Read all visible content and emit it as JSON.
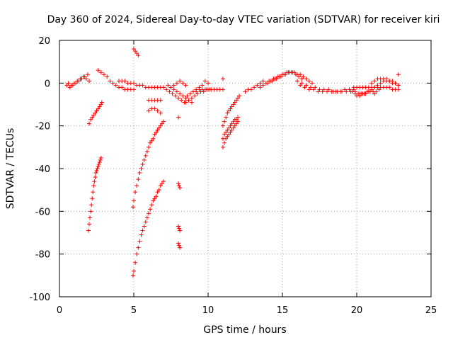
{
  "chart_data": {
    "type": "scatter",
    "title": "Day 360 of 2024, Sidereal Day-to-day VTEC variation (SDTVAR) for receiver kiri",
    "xlabel": "GPS time / hours",
    "ylabel": "SDTVAR / TECUs",
    "xlim": [
      0,
      25
    ],
    "ylim": [
      -100,
      20
    ],
    "xticks": [
      "0",
      "5",
      "10",
      "15",
      "20",
      "25"
    ],
    "yticks": [
      "20",
      "0",
      "-20",
      "-40",
      "-60",
      "-80",
      "-100"
    ],
    "grid": true,
    "marker": "+",
    "color": "#ff0000",
    "series": [
      {
        "name": "s1",
        "x": [
          0.5,
          0.7,
          0.9,
          1.1,
          1.3,
          1.5,
          1.7,
          1.9
        ],
        "y": [
          -1,
          -2,
          -1,
          0,
          1,
          2,
          3,
          4
        ]
      },
      {
        "name": "s2",
        "x": [
          0.6,
          0.8,
          1.0,
          1.2,
          1.4,
          1.6,
          1.8,
          2.0
        ],
        "y": [
          0,
          -1,
          0,
          1,
          2,
          3,
          2,
          1
        ]
      },
      {
        "name": "s3",
        "x": [
          2.0,
          2.1,
          2.2,
          2.3,
          2.4,
          2.5,
          2.6,
          2.7,
          2.8,
          2.85
        ],
        "y": [
          -19,
          -17,
          -16,
          -15,
          -14,
          -13,
          -12,
          -11,
          -10,
          -9
        ]
      },
      {
        "name": "s4",
        "x": [
          1.95,
          2.0,
          2.05,
          2.1,
          2.15,
          2.2,
          2.25,
          2.3,
          2.35,
          2.4,
          2.45,
          2.5,
          2.55,
          2.6,
          2.65,
          2.7,
          2.75,
          2.8
        ],
        "y": [
          -69,
          -66,
          -63,
          -60,
          -57,
          -54,
          -51,
          -48,
          -46,
          -44,
          -42,
          -41,
          -40,
          -39,
          -38,
          -37,
          -36,
          -35
        ]
      },
      {
        "name": "s5",
        "x": [
          2.6,
          2.8,
          3.0,
          3.2,
          3.4,
          3.6,
          3.8,
          4.0,
          4.2,
          4.4,
          4.6,
          4.8,
          5.0
        ],
        "y": [
          6,
          5,
          4,
          3,
          1,
          0,
          -1,
          -2,
          -2,
          -3,
          -3,
          -3,
          -3
        ]
      },
      {
        "name": "s6",
        "x": [
          4.0,
          4.2,
          4.4,
          4.6,
          4.8,
          5.0,
          5.2,
          5.4,
          5.6,
          5.8,
          6.0,
          6.2,
          6.4,
          6.6,
          6.8,
          7.0
        ],
        "y": [
          1,
          1,
          1,
          0,
          0,
          0,
          -1,
          -1,
          -1,
          -2,
          -2,
          -2,
          -2,
          -2,
          -2,
          -2
        ]
      },
      {
        "name": "s7",
        "x": [
          5.0,
          5.1,
          5.2,
          5.3
        ],
        "y": [
          16,
          15,
          14,
          13
        ]
      },
      {
        "name": "s8",
        "x": [
          4.95,
          5.0,
          5.1,
          5.2,
          5.3,
          5.4,
          5.5,
          5.6,
          5.7,
          5.8,
          5.9,
          6.0,
          6.1,
          6.2,
          6.3,
          6.4,
          6.5,
          6.6,
          6.7,
          6.8,
          6.9,
          7.0
        ],
        "y": [
          -58,
          -55,
          -51,
          -48,
          -45,
          -42,
          -40,
          -38,
          -36,
          -34,
          -32,
          -30,
          -28,
          -27,
          -26,
          -24,
          -23,
          -22,
          -21,
          -20,
          -19,
          -18
        ]
      },
      {
        "name": "s9",
        "x": [
          4.95,
          5.0,
          5.1,
          5.2,
          5.3,
          5.4,
          5.5,
          5.6,
          5.7,
          5.8,
          5.9,
          6.0,
          6.1,
          6.2,
          6.3,
          6.4,
          6.5,
          6.6,
          6.7,
          6.8,
          6.9,
          7.0
        ],
        "y": [
          -90,
          -88,
          -84,
          -80,
          -77,
          -74,
          -71,
          -69,
          -67,
          -65,
          -63,
          -61,
          -59,
          -57,
          -55,
          -54,
          -53,
          -51,
          -50,
          -48,
          -47,
          -46
        ]
      },
      {
        "name": "s10",
        "x": [
          6.0,
          6.2,
          6.4,
          6.6,
          6.8
        ],
        "y": [
          -8,
          -8,
          -8,
          -8,
          -8
        ]
      },
      {
        "name": "s11",
        "x": [
          6.0,
          6.2,
          6.4,
          6.6,
          6.8
        ],
        "y": [
          -13,
          -12,
          -12,
          -13,
          -14
        ]
      },
      {
        "name": "s12",
        "x": [
          7.0,
          7.2,
          7.4,
          7.6,
          7.8,
          8.0,
          8.2,
          8.4
        ],
        "y": [
          -2,
          -3,
          -4,
          -5,
          -6,
          -7,
          -8,
          -9
        ]
      },
      {
        "name": "s13",
        "x": [
          7.3,
          7.5,
          7.7,
          7.9,
          8.1,
          8.3,
          8.5,
          8.7,
          8.9
        ],
        "y": [
          -1,
          -2,
          -3,
          -4,
          -5,
          -6,
          -7,
          -8,
          -9
        ]
      },
      {
        "name": "s14",
        "x": [
          8.5,
          8.7,
          8.9,
          9.1,
          9.3,
          9.5,
          9.7,
          9.9,
          10.1
        ],
        "y": [
          -9,
          -8,
          -7,
          -6,
          -5,
          -4,
          -4,
          -3,
          -3
        ]
      },
      {
        "name": "s15",
        "x": [
          7.5,
          7.7,
          7.9,
          8.1,
          8.3,
          8.5
        ],
        "y": [
          -2,
          -1,
          0,
          1,
          0,
          -1
        ]
      },
      {
        "name": "s16",
        "x": [
          8.6,
          8.8,
          9.0,
          9.2,
          9.4,
          9.6
        ],
        "y": [
          -6,
          -5,
          -4,
          -3,
          -2,
          -1
        ]
      },
      {
        "name": "s17",
        "x": [
          9.0,
          9.2,
          9.4,
          9.6,
          9.8,
          10.0,
          10.2,
          10.4,
          10.6,
          10.8,
          11.0
        ],
        "y": [
          -4,
          -4,
          -3,
          -3,
          -3,
          -3,
          -3,
          -3,
          -3,
          -3,
          -3
        ]
      },
      {
        "name": "s18",
        "x": [
          9.8,
          10.0
        ],
        "y": [
          1,
          0
        ]
      },
      {
        "name": "s19",
        "x": [
          11.0
        ],
        "y": [
          2
        ]
      },
      {
        "name": "s20",
        "x": [
          8.0,
          8.05,
          8.1
        ],
        "y": [
          -47,
          -48,
          -49
        ]
      },
      {
        "name": "s21",
        "x": [
          8.0,
          8.05,
          8.1
        ],
        "y": [
          -67,
          -68,
          -69
        ]
      },
      {
        "name": "s22",
        "x": [
          8.0,
          8.05,
          8.1
        ],
        "y": [
          -75,
          -76,
          -77
        ]
      },
      {
        "name": "s23",
        "x": [
          8.0
        ],
        "y": [
          -16
        ]
      },
      {
        "name": "s24",
        "x": [
          11.0,
          11.1,
          11.2,
          11.3,
          11.4,
          11.5,
          11.6,
          11.7,
          11.8,
          11.9,
          12.0,
          12.1
        ],
        "y": [
          -20,
          -18,
          -16,
          -14,
          -13,
          -12,
          -11,
          -10,
          -9,
          -8,
          -7,
          -6
        ]
      },
      {
        "name": "s25",
        "x": [
          11.0,
          11.1,
          11.2,
          11.3,
          11.4,
          11.5,
          11.6,
          11.7,
          11.8,
          11.9,
          12.0
        ],
        "y": [
          -30,
          -28,
          -26,
          -25,
          -24,
          -23,
          -22,
          -21,
          -20,
          -19,
          -18
        ]
      },
      {
        "name": "s26",
        "x": [
          11.0,
          11.1,
          11.2,
          11.3,
          11.4,
          11.5,
          11.6,
          11.7,
          11.8,
          11.9,
          12.0
        ],
        "y": [
          -26,
          -24,
          -23,
          -22,
          -21,
          -20,
          -19,
          -18,
          -17,
          -17,
          -16
        ]
      },
      {
        "name": "s27",
        "x": [
          12.5,
          12.7,
          12.9,
          13.1,
          13.3,
          13.5,
          13.7
        ],
        "y": [
          -4,
          -3,
          -3,
          -2,
          -1,
          0,
          1
        ]
      },
      {
        "name": "s28",
        "x": [
          13.5,
          13.7,
          13.9,
          14.1,
          14.3,
          14.5,
          14.7,
          14.9,
          15.1,
          15.3,
          15.5,
          15.7,
          15.9,
          16.1,
          16.3
        ],
        "y": [
          -2,
          -1,
          0,
          1,
          1,
          2,
          3,
          3,
          4,
          5,
          5,
          5,
          4,
          3,
          2
        ]
      },
      {
        "name": "s29",
        "x": [
          14.0,
          14.2,
          14.4,
          14.6,
          14.8,
          15.0,
          15.2,
          15.4,
          15.6,
          15.8,
          16.0,
          16.2,
          16.4,
          16.6,
          16.8,
          17.0
        ],
        "y": [
          0,
          1,
          2,
          2,
          3,
          4,
          4,
          5,
          5,
          5,
          4,
          4,
          3,
          2,
          1,
          0
        ]
      },
      {
        "name": "s30",
        "x": [
          16.0,
          16.3,
          16.6,
          16.9,
          17.2,
          17.5,
          17.8,
          18.1,
          18.4,
          18.7,
          19.0,
          19.3,
          19.6,
          19.9,
          20.2
        ],
        "y": [
          1,
          0,
          -1,
          -2,
          -2,
          -3,
          -3,
          -3,
          -4,
          -4,
          -4,
          -4,
          -4,
          -4,
          -5
        ]
      },
      {
        "name": "s31",
        "x": [
          16.2,
          16.5,
          16.8,
          17.1,
          17.4,
          17.7,
          18.0,
          18.3,
          18.6,
          18.9,
          19.2,
          19.5,
          19.8
        ],
        "y": [
          -1,
          -2,
          -3,
          -3,
          -4,
          -4,
          -4,
          -4,
          -4,
          -4,
          -3,
          -3,
          -3
        ]
      },
      {
        "name": "s32",
        "x": [
          19.5,
          19.7,
          19.9,
          20.1,
          20.3,
          20.5,
          20.7,
          20.9,
          21.1,
          21.3,
          21.5
        ],
        "y": [
          -3,
          -4,
          -5,
          -5,
          -5,
          -5,
          -4,
          -4,
          -4,
          -4,
          -3
        ]
      },
      {
        "name": "s33",
        "x": [
          19.8,
          20.0,
          20.2,
          20.4,
          20.6,
          20.8,
          21.0,
          21.2,
          21.4,
          21.6,
          21.8,
          22.0,
          22.2,
          22.4,
          22.6,
          22.8
        ],
        "y": [
          -2,
          -2,
          -2,
          -2,
          -2,
          -2,
          -2,
          -2,
          -2,
          -2,
          -2,
          -2,
          -2,
          -3,
          -3,
          -3
        ]
      },
      {
        "name": "s34",
        "x": [
          20.0,
          20.2,
          20.4,
          20.6,
          20.8,
          21.0,
          21.2,
          21.4,
          21.6,
          21.8,
          22.0,
          22.2,
          22.4,
          22.6,
          22.8
        ],
        "y": [
          -6,
          -6,
          -5,
          -5,
          -4,
          -3,
          -2,
          -1,
          0,
          1,
          2,
          1,
          1,
          0,
          -1
        ]
      },
      {
        "name": "s35",
        "x": [
          21.0,
          21.2,
          21.4,
          21.6,
          21.8,
          22.0,
          22.2,
          22.4,
          22.6,
          22.8
        ],
        "y": [
          0,
          1,
          2,
          2,
          2,
          1,
          1,
          0,
          0,
          -1
        ]
      },
      {
        "name": "s36",
        "x": [
          21.2
        ],
        "y": [
          -5
        ]
      },
      {
        "name": "s37",
        "x": [
          22.8
        ],
        "y": [
          4
        ]
      }
    ]
  }
}
